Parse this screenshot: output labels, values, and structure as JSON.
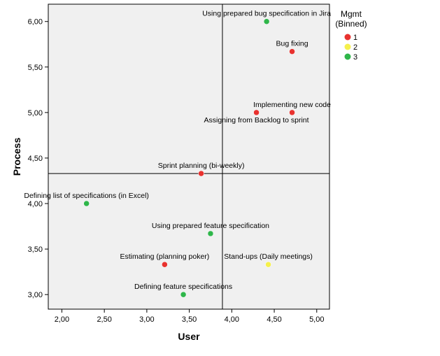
{
  "chart_data": {
    "type": "scatter",
    "title": "",
    "xlabel": "User",
    "ylabel": "Process",
    "xlim": [
      1.84,
      5.15
    ],
    "ylim": [
      2.84,
      6.19
    ],
    "x_ticks": [
      {
        "value": 2.0,
        "label": "2,00"
      },
      {
        "value": 2.5,
        "label": "2,50"
      },
      {
        "value": 3.0,
        "label": "3,00"
      },
      {
        "value": 3.5,
        "label": "3,50"
      },
      {
        "value": 4.0,
        "label": "4,00"
      },
      {
        "value": 4.5,
        "label": "4,50"
      },
      {
        "value": 5.0,
        "label": "5,00"
      }
    ],
    "y_ticks": [
      {
        "value": 3.0,
        "label": "3,00"
      },
      {
        "value": 3.5,
        "label": "3,50"
      },
      {
        "value": 4.0,
        "label": "4,00"
      },
      {
        "value": 4.5,
        "label": "4,50"
      },
      {
        "value": 5.0,
        "label": "5,00"
      },
      {
        "value": 5.5,
        "label": "5,50"
      },
      {
        "value": 6.0,
        "label": "6,00"
      }
    ],
    "reference_lines": {
      "x": 3.89,
      "y": 4.33
    },
    "grid": false,
    "legend": {
      "title_line1": "Mgmt",
      "title_line2": "(Binned)",
      "placement": "top-right",
      "entries": [
        {
          "label": "1",
          "color": "#e8322f"
        },
        {
          "label": "2",
          "color": "#f5f04c"
        },
        {
          "label": "3",
          "color": "#2fb64a"
        }
      ]
    },
    "points": [
      {
        "x": 4.41,
        "y": 6.0,
        "group": "3",
        "label": "Using prepared bug specification in Jira",
        "label_pos": "above"
      },
      {
        "x": 4.71,
        "y": 5.67,
        "group": "1",
        "label": "Bug fixing",
        "label_pos": "above"
      },
      {
        "x": 4.71,
        "y": 5.0,
        "group": "1",
        "label": "Implementing new code",
        "label_pos": "above"
      },
      {
        "x": 4.29,
        "y": 5.0,
        "group": "1",
        "label": "Assigning from Backlog to sprint",
        "label_pos": "below"
      },
      {
        "x": 3.64,
        "y": 4.33,
        "group": "1",
        "label": "Sprint planning  (bi-weekly)",
        "label_pos": "above"
      },
      {
        "x": 2.29,
        "y": 4.0,
        "group": "3",
        "label": "Defining list of specifications (in Excel)",
        "label_pos": "above"
      },
      {
        "x": 3.75,
        "y": 3.67,
        "group": "3",
        "label": "Using prepared feature specification",
        "label_pos": "above"
      },
      {
        "x": 3.21,
        "y": 3.33,
        "group": "1",
        "label": "Estimating (planning poker)",
        "label_pos": "above"
      },
      {
        "x": 4.43,
        "y": 3.33,
        "group": "2",
        "label": "Stand-ups (Daily meetings)",
        "label_pos": "above"
      },
      {
        "x": 3.43,
        "y": 3.0,
        "group": "3",
        "label": "Defining feature specifications",
        "label_pos": "above"
      }
    ]
  }
}
